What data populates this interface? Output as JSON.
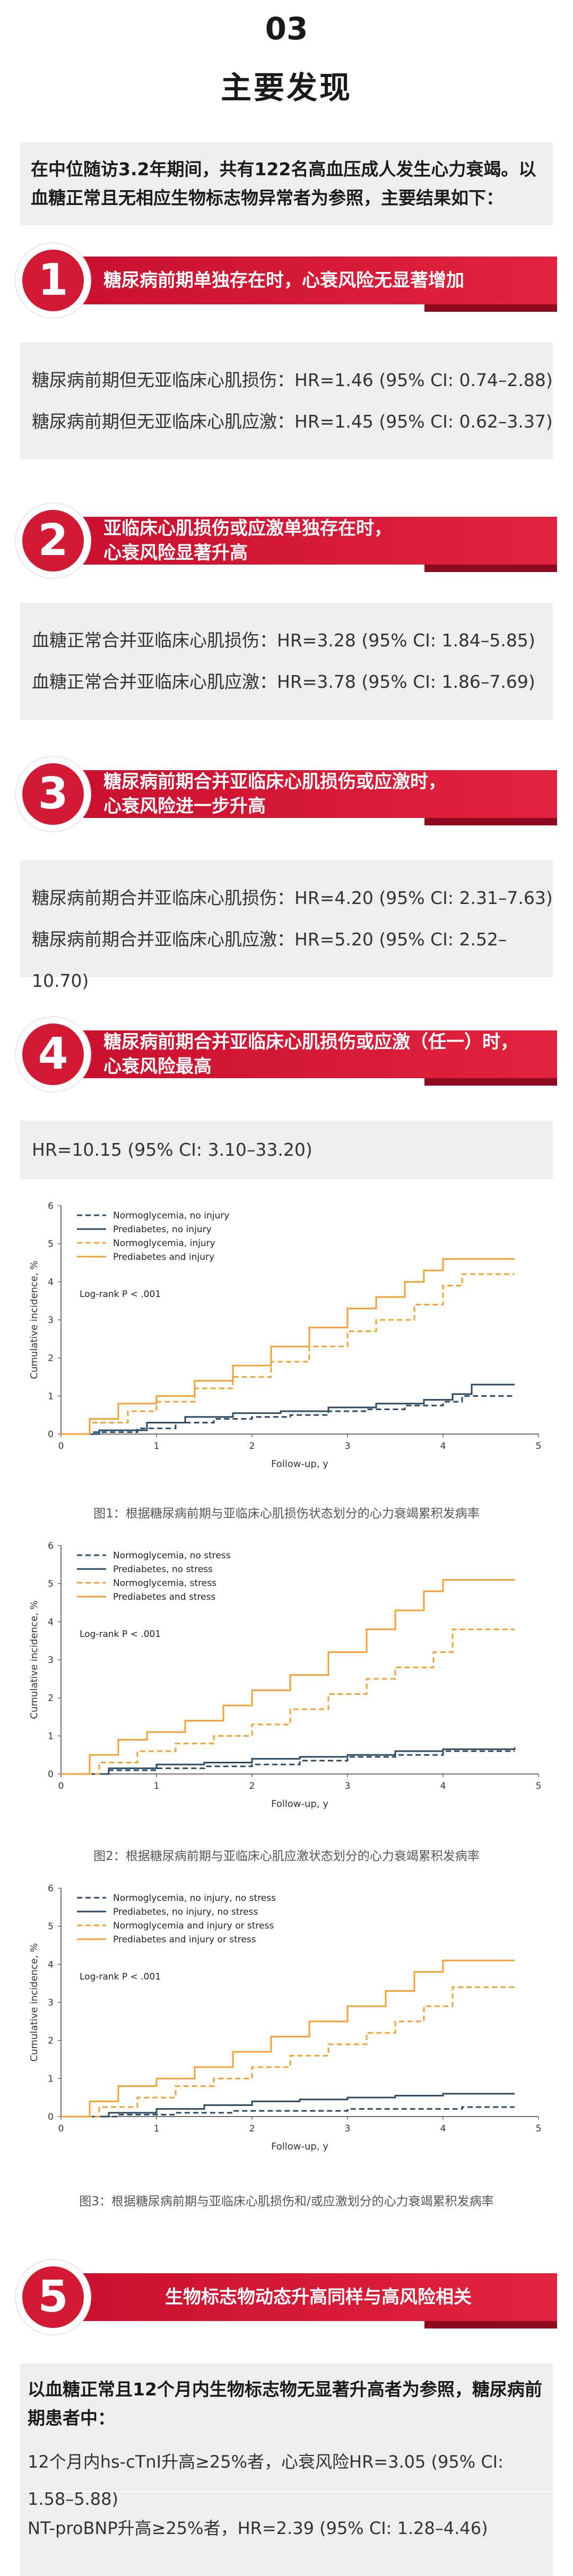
{
  "header": {
    "number": "03",
    "title": "主要发现"
  },
  "intro": "在中位随访3.2年期间，共有122名高血压成人发生心力衰竭。以血糖正常且无相应生物标志物异常者为参照，主要结果如下：",
  "findings": [
    {
      "num": "1",
      "title": "糖尿病前期单独存在时，心衰风险无显著增加",
      "results": [
        "糖尿病前期但无亚临床心肌损伤：HR=1.46 (95% CI: 0.74–2.88)",
        "糖尿病前期但无亚临床心肌应激：HR=1.45 (95% CI: 0.62–3.37)"
      ]
    },
    {
      "num": "2",
      "title_l1": "亚临床心肌损伤或应激单独存在时，",
      "title_l2": "心衰风险显著升高",
      "results": [
        "血糖正常合并亚临床心肌损伤：HR=3.28 (95% CI: 1.84–5.85)",
        "血糖正常合并亚临床心肌应激：HR=3.78 (95% CI: 1.86–7.69)"
      ]
    },
    {
      "num": "3",
      "title_l1": "糖尿病前期合并亚临床心肌损伤或应激时，",
      "title_l2": "心衰风险进一步升高",
      "results": [
        "糖尿病前期合并亚临床心肌损伤：HR=4.20 (95% CI: 2.31–7.63)",
        "糖尿病前期合并亚临床心肌应激：HR=5.20 (95% CI: 2.52–10.70)"
      ]
    },
    {
      "num": "4",
      "title_l1": "糖尿病前期合并亚临床心肌损伤或应激（任一）时，",
      "title_l2": "心衰风险最高",
      "results": [
        "HR=10.15 (95% CI: 3.10–33.20)"
      ]
    },
    {
      "num": "5",
      "title": "生物标志物动态升高同样与高风险相关"
    }
  ],
  "section5": {
    "intro": "以血糖正常且12个月内生物标志物无显著升高者为参照，糖尿病前期患者中：",
    "lines": [
      "12个月内hs-cTnI升高≥25%者，心衰风险HR=3.05 (95% CI: 1.58–5.88)",
      "NT-proBNP升高≥25%者，HR=2.39 (95% CI: 1.28–4.46)"
    ]
  },
  "chart_data": [
    {
      "type": "line",
      "caption": "图1：根据糖尿病前期与亚临床心肌损伤状态划分的心力衰竭累积发病率",
      "xlabel": "Follow-up, y",
      "ylabel": "Cumulative incidence, %",
      "xlim": [
        0,
        5
      ],
      "ylim": [
        0,
        6
      ],
      "xticks": [
        "0",
        "1",
        "2",
        "3",
        "4",
        "5"
      ],
      "yticks": [
        "0",
        "1",
        "2",
        "3",
        "4",
        "5",
        "6"
      ],
      "annotation": "Log-rank P < .001",
      "legend": "top-left",
      "series": [
        {
          "name": "Normoglycemia, no injury",
          "color": "#2c4a63",
          "dash": "dashed",
          "points": [
            [
              0,
              0
            ],
            [
              0.3,
              0.05
            ],
            [
              0.8,
              0.15
            ],
            [
              1.2,
              0.3
            ],
            [
              1.6,
              0.4
            ],
            [
              2,
              0.45
            ],
            [
              2.4,
              0.5
            ],
            [
              2.8,
              0.6
            ],
            [
              3.2,
              0.65
            ],
            [
              3.6,
              0.75
            ],
            [
              4,
              0.85
            ],
            [
              4.2,
              1.0
            ],
            [
              4.75,
              1.0
            ]
          ]
        },
        {
          "name": "Prediabetes, no injury",
          "color": "#2c4a63",
          "dash": "solid",
          "points": [
            [
              0,
              0
            ],
            [
              0.4,
              0.1
            ],
            [
              0.9,
              0.3
            ],
            [
              1.3,
              0.45
            ],
            [
              1.8,
              0.55
            ],
            [
              2.3,
              0.6
            ],
            [
              2.8,
              0.7
            ],
            [
              3.3,
              0.8
            ],
            [
              3.8,
              0.9
            ],
            [
              4.1,
              1.05
            ],
            [
              4.3,
              1.3
            ],
            [
              4.75,
              1.3
            ]
          ]
        },
        {
          "name": "Normoglycemia, injury",
          "color": "#f5a033",
          "dash": "dashed",
          "points": [
            [
              0,
              0
            ],
            [
              0.3,
              0.3
            ],
            [
              0.7,
              0.6
            ],
            [
              1.0,
              0.85
            ],
            [
              1.4,
              1.2
            ],
            [
              1.8,
              1.5
            ],
            [
              2.2,
              1.9
            ],
            [
              2.6,
              2.3
            ],
            [
              3.0,
              2.7
            ],
            [
              3.3,
              3.0
            ],
            [
              3.7,
              3.4
            ],
            [
              4.0,
              3.9
            ],
            [
              4.2,
              4.2
            ],
            [
              4.75,
              4.2
            ]
          ]
        },
        {
          "name": "Prediabetes and injury",
          "color": "#f5a033",
          "dash": "solid",
          "points": [
            [
              0,
              0
            ],
            [
              0.3,
              0.4
            ],
            [
              0.6,
              0.8
            ],
            [
              1.0,
              1.0
            ],
            [
              1.4,
              1.4
            ],
            [
              1.8,
              1.8
            ],
            [
              2.2,
              2.3
            ],
            [
              2.6,
              2.8
            ],
            [
              3.0,
              3.3
            ],
            [
              3.3,
              3.6
            ],
            [
              3.6,
              4.0
            ],
            [
              3.8,
              4.3
            ],
            [
              4.0,
              4.6
            ],
            [
              4.75,
              4.6
            ]
          ]
        }
      ]
    },
    {
      "type": "line",
      "caption": "图2：根据糖尿病前期与亚临床心肌应激状态划分的心力衰竭累积发病率",
      "xlabel": "Follow-up, y",
      "ylabel": "Cumulative incidence, %",
      "xlim": [
        0,
        5
      ],
      "ylim": [
        0,
        6
      ],
      "xticks": [
        "0",
        "1",
        "2",
        "3",
        "4",
        "5"
      ],
      "yticks": [
        "0",
        "1",
        "2",
        "3",
        "4",
        "5",
        "6"
      ],
      "annotation": "Log-rank P < .001",
      "legend": "top-left",
      "series": [
        {
          "name": "Normoglycemia, no stress",
          "color": "#2c4a63",
          "dash": "dashed",
          "points": [
            [
              0,
              0
            ],
            [
              0.5,
              0.1
            ],
            [
              1.0,
              0.15
            ],
            [
              1.5,
              0.2
            ],
            [
              2.0,
              0.25
            ],
            [
              2.5,
              0.35
            ],
            [
              3.0,
              0.45
            ],
            [
              3.5,
              0.5
            ],
            [
              4.0,
              0.6
            ],
            [
              4.75,
              0.6
            ]
          ]
        },
        {
          "name": "Prediabetes, no stress",
          "color": "#2c4a63",
          "dash": "solid",
          "points": [
            [
              0,
              0
            ],
            [
              0.5,
              0.15
            ],
            [
              1.0,
              0.25
            ],
            [
              1.5,
              0.3
            ],
            [
              2.0,
              0.4
            ],
            [
              2.5,
              0.45
            ],
            [
              3.0,
              0.5
            ],
            [
              3.5,
              0.6
            ],
            [
              4.0,
              0.65
            ],
            [
              4.75,
              0.7
            ]
          ]
        },
        {
          "name": "Normoglycemia, stress",
          "color": "#f5a033",
          "dash": "dashed",
          "points": [
            [
              0,
              0
            ],
            [
              0.4,
              0.3
            ],
            [
              0.8,
              0.6
            ],
            [
              1.2,
              0.8
            ],
            [
              1.6,
              1.0
            ],
            [
              2.0,
              1.3
            ],
            [
              2.4,
              1.7
            ],
            [
              2.8,
              2.1
            ],
            [
              3.2,
              2.5
            ],
            [
              3.5,
              2.8
            ],
            [
              3.9,
              3.2
            ],
            [
              4.1,
              3.8
            ],
            [
              4.75,
              3.8
            ]
          ]
        },
        {
          "name": "Prediabetes and stress",
          "color": "#f5a033",
          "dash": "solid",
          "points": [
            [
              0,
              0
            ],
            [
              0.3,
              0.5
            ],
            [
              0.6,
              0.9
            ],
            [
              0.9,
              1.1
            ],
            [
              1.3,
              1.4
            ],
            [
              1.7,
              1.8
            ],
            [
              2.0,
              2.2
            ],
            [
              2.4,
              2.6
            ],
            [
              2.8,
              3.2
            ],
            [
              3.2,
              3.8
            ],
            [
              3.5,
              4.3
            ],
            [
              3.8,
              4.8
            ],
            [
              4.0,
              5.1
            ],
            [
              4.75,
              5.1
            ]
          ]
        }
      ]
    },
    {
      "type": "line",
      "caption": "图3：根据糖尿病前期与亚临床心肌损伤和/或应激划分的心力衰竭累积发病率",
      "xlabel": "Follow-up, y",
      "ylabel": "Cumulative incidence, %",
      "xlim": [
        0,
        5
      ],
      "ylim": [
        0,
        6
      ],
      "xticks": [
        "0",
        "1",
        "2",
        "3",
        "4",
        "5"
      ],
      "yticks": [
        "0",
        "1",
        "2",
        "3",
        "4",
        "5",
        "6"
      ],
      "annotation": "Log-rank P < .001",
      "legend": "top-left",
      "series": [
        {
          "name": "Normoglycemia, no injury, no stress",
          "color": "#2c4a63",
          "dash": "dashed",
          "points": [
            [
              0,
              0
            ],
            [
              0.6,
              0.05
            ],
            [
              1.2,
              0.1
            ],
            [
              1.8,
              0.15
            ],
            [
              2.4,
              0.15
            ],
            [
              3.0,
              0.2
            ],
            [
              3.6,
              0.2
            ],
            [
              4.2,
              0.25
            ],
            [
              4.75,
              0.25
            ]
          ]
        },
        {
          "name": "Prediabetes, no injury, no stress",
          "color": "#2c4a63",
          "dash": "solid",
          "points": [
            [
              0,
              0
            ],
            [
              0.5,
              0.1
            ],
            [
              1.0,
              0.2
            ],
            [
              1.5,
              0.3
            ],
            [
              2.0,
              0.4
            ],
            [
              2.5,
              0.45
            ],
            [
              3.0,
              0.5
            ],
            [
              3.5,
              0.55
            ],
            [
              4.0,
              0.6
            ],
            [
              4.75,
              0.6
            ]
          ]
        },
        {
          "name": "Normoglycemia and injury or stress",
          "color": "#f5a033",
          "dash": "dashed",
          "points": [
            [
              0,
              0
            ],
            [
              0.4,
              0.25
            ],
            [
              0.8,
              0.5
            ],
            [
              1.2,
              0.8
            ],
            [
              1.6,
              1.0
            ],
            [
              2.0,
              1.3
            ],
            [
              2.4,
              1.6
            ],
            [
              2.8,
              1.9
            ],
            [
              3.2,
              2.2
            ],
            [
              3.5,
              2.5
            ],
            [
              3.8,
              2.9
            ],
            [
              4.1,
              3.4
            ],
            [
              4.75,
              3.4
            ]
          ]
        },
        {
          "name": "Prediabetes and injury or stress",
          "color": "#f5a033",
          "dash": "solid",
          "points": [
            [
              0,
              0
            ],
            [
              0.3,
              0.4
            ],
            [
              0.6,
              0.8
            ],
            [
              1.0,
              1.0
            ],
            [
              1.4,
              1.3
            ],
            [
              1.8,
              1.7
            ],
            [
              2.2,
              2.1
            ],
            [
              2.6,
              2.5
            ],
            [
              3.0,
              2.9
            ],
            [
              3.4,
              3.3
            ],
            [
              3.7,
              3.8
            ],
            [
              4.0,
              4.1
            ],
            [
              4.75,
              4.1
            ]
          ]
        }
      ]
    }
  ]
}
